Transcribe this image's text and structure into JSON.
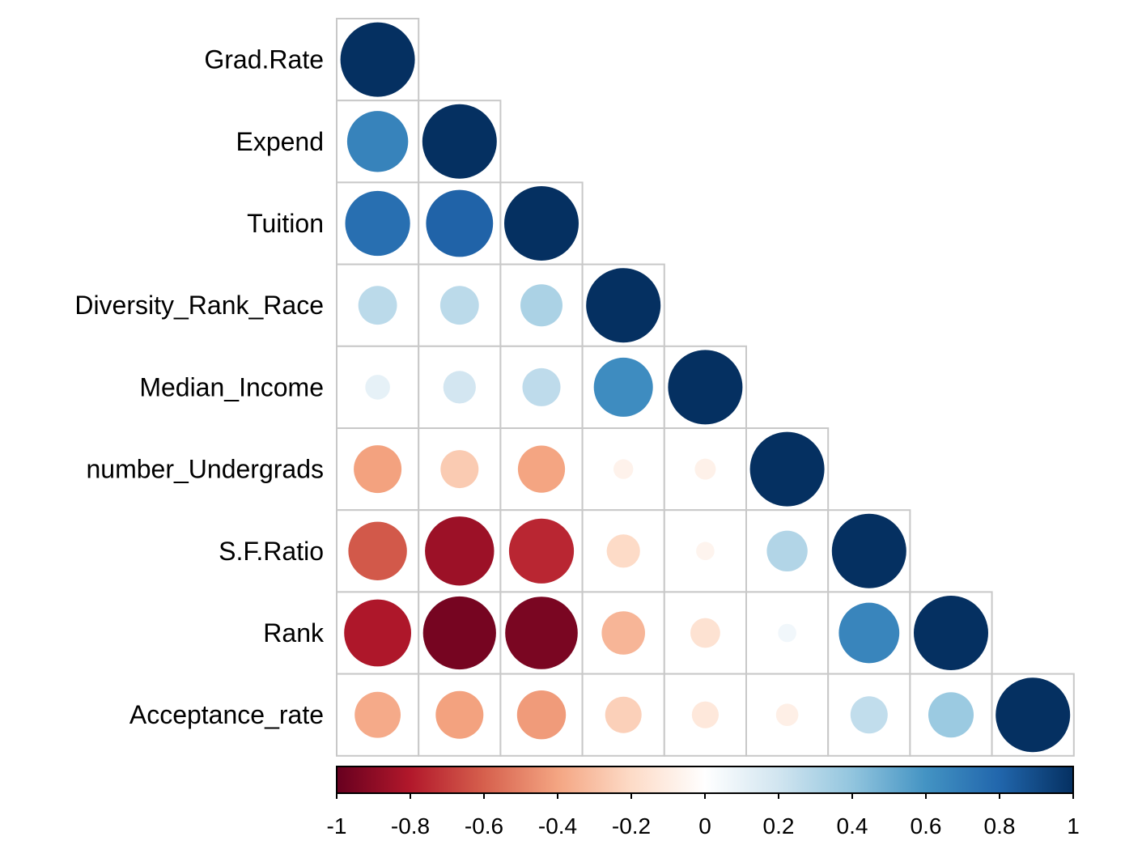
{
  "chart_data": {
    "type": "heatmap",
    "style": "circle-lower-triangle correlation matrix",
    "variables": [
      "Grad.Rate",
      "Expend",
      "Tuition",
      "Diversity_Rank_Race",
      "Median_Income",
      "number_Undergrads",
      "S.F.Ratio",
      "Rank",
      "Acceptance_rate"
    ],
    "matrix": [
      [
        1.0
      ],
      [
        0.67,
        1.0
      ],
      [
        0.76,
        0.81,
        1.0
      ],
      [
        0.27,
        0.27,
        0.32,
        1.0
      ],
      [
        0.11,
        0.19,
        0.26,
        0.63,
        1.0
      ],
      [
        -0.41,
        -0.26,
        -0.4,
        -0.07,
        -0.08,
        1.0
      ],
      [
        -0.62,
        -0.86,
        -0.76,
        -0.2,
        -0.06,
        0.3,
        1.0
      ],
      [
        -0.81,
        -0.96,
        -0.95,
        -0.34,
        -0.16,
        0.06,
        0.66,
        1.0
      ],
      [
        -0.38,
        -0.41,
        -0.43,
        -0.24,
        -0.13,
        -0.09,
        0.25,
        0.37,
        1.0
      ]
    ],
    "colorbar": {
      "range": [
        -1,
        1
      ],
      "ticks": [
        "-1",
        "-0.8",
        "-0.6",
        "-0.4",
        "-0.2",
        "0",
        "0.2",
        "0.4",
        "0.6",
        "0.8",
        "1"
      ],
      "colors": {
        "neg_strong": "#67001F",
        "neg_mid1": "#B2182B",
        "neg_mid2": "#D6604D",
        "neg_light1": "#F4A582",
        "neg_light2": "#FDDBC7",
        "zero": "#FFFFFF",
        "pos_light2": "#D1E5F0",
        "pos_light1": "#92C5DE",
        "pos_mid2": "#4393C3",
        "pos_mid1": "#2166AC",
        "pos_strong": "#053061"
      }
    },
    "title": "",
    "grid": true
  }
}
